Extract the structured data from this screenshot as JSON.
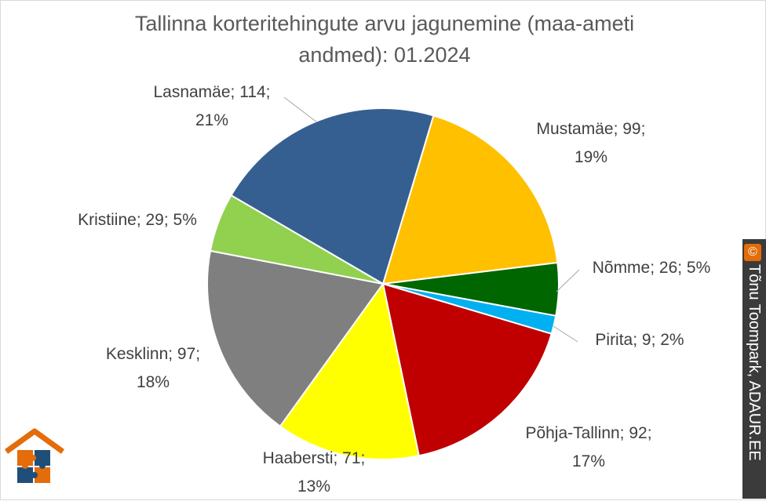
{
  "chart_data": {
    "type": "pie",
    "title": "Tallinna korteritehingute arvu jagunemine (maa-ameti andmed): 01.2024",
    "slices": [
      {
        "name": "Mustamäe",
        "value": 99,
        "percent": "19%",
        "color": "#ffc000"
      },
      {
        "name": "Nõmme",
        "value": 26,
        "percent": "5%",
        "color": "#006600"
      },
      {
        "name": "Pirita",
        "value": 9,
        "percent": "2%",
        "color": "#00b0f0"
      },
      {
        "name": "Põhja-Tallinn",
        "value": 92,
        "percent": "17%",
        "color": "#c00000"
      },
      {
        "name": "Haabersti",
        "value": 71,
        "percent": "13%",
        "color": "#ffff00"
      },
      {
        "name": "Kesklinn",
        "value": 97,
        "percent": "18%",
        "color": "#7f7f7f"
      },
      {
        "name": "Kristiine",
        "value": 29,
        "percent": "5%",
        "color": "#92d050"
      },
      {
        "name": "Lasnamäe",
        "value": 114,
        "percent": "21%",
        "color": "#365f91"
      }
    ],
    "labels": {
      "mustamae": {
        "line1": "Mustamäe; 99;",
        "line2": "19%"
      },
      "nomme": {
        "line1": "Nõmme; 26; 5%"
      },
      "pirita": {
        "line1": "Pirita; 9; 2%"
      },
      "pohja": {
        "line1": "Põhja-Tallinn; 92;",
        "line2": "17%"
      },
      "haabersti": {
        "line1": "Haabersti; 71;",
        "line2": "13%"
      },
      "kesklinn": {
        "line1": "Kesklinn; 97;",
        "line2": "18%"
      },
      "kristiine": {
        "line1": "Kristiine; 29; 5%"
      },
      "lasnamae": {
        "line1": "Lasnamäe; 114;",
        "line2": "21%"
      }
    }
  },
  "credit": {
    "symbol": "©",
    "text": "Tõnu Toompark, ADAUR.EE"
  }
}
